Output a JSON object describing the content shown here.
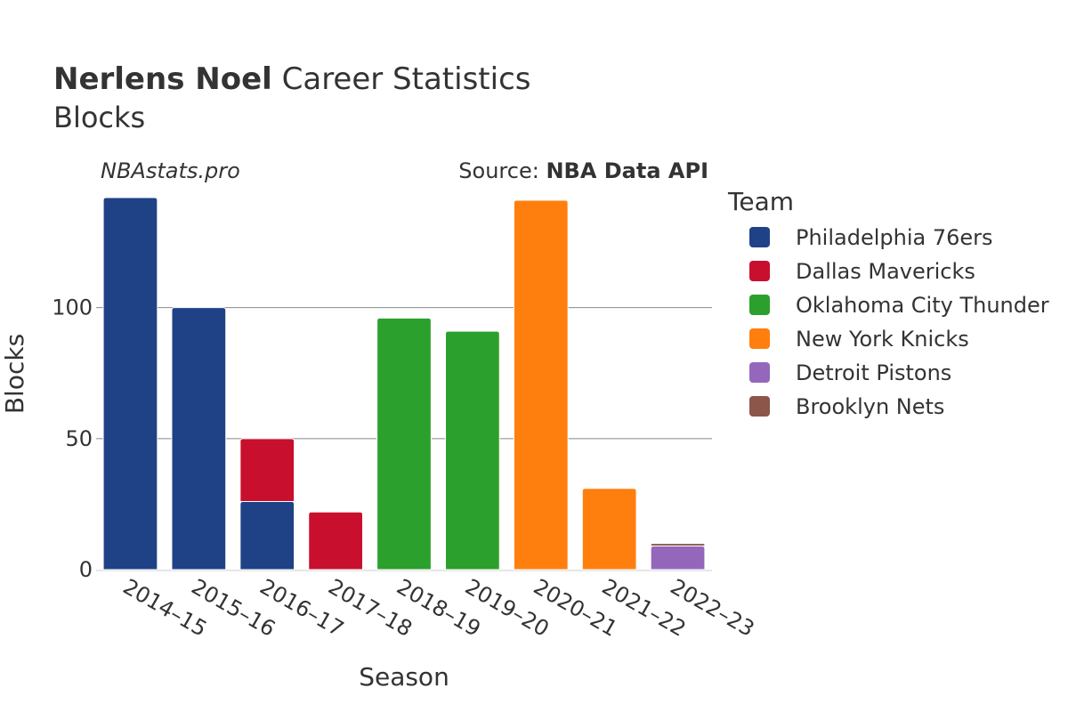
{
  "header": {
    "title_bold": "Nerlens Noel",
    "title_rest": " Career Statistics",
    "subtitle": "Blocks",
    "watermark": "NBAstats.pro",
    "source_prefix": "Source: ",
    "source_name": "NBA Data API"
  },
  "legend": {
    "title": "Team"
  },
  "chart_data": {
    "type": "bar",
    "stacked": true,
    "xlabel": "Season",
    "ylabel": "Blocks",
    "ylim": [
      0,
      142
    ],
    "yticks": [
      0,
      50,
      100
    ],
    "grid": true,
    "legend_position": "right",
    "categories": [
      "2014–15",
      "2015–16",
      "2016–17",
      "2017–18",
      "2018–19",
      "2019–20",
      "2020–21",
      "2021–22",
      "2022–23"
    ],
    "series": [
      {
        "name": "Philadelphia 76ers",
        "color": "#1f4287",
        "values": [
          142,
          100,
          26,
          0,
          0,
          0,
          0,
          0,
          0
        ]
      },
      {
        "name": "Dallas Mavericks",
        "color": "#c8102e",
        "values": [
          0,
          0,
          24,
          22,
          0,
          0,
          0,
          0,
          0
        ]
      },
      {
        "name": "Oklahoma City Thunder",
        "color": "#2ca02c",
        "values": [
          0,
          0,
          0,
          0,
          96,
          91,
          0,
          0,
          0
        ]
      },
      {
        "name": "New York Knicks",
        "color": "#ff7f0e",
        "values": [
          0,
          0,
          0,
          0,
          0,
          0,
          141,
          31,
          0
        ]
      },
      {
        "name": "Detroit Pistons",
        "color": "#9467bd",
        "values": [
          0,
          0,
          0,
          0,
          0,
          0,
          0,
          0,
          9
        ]
      },
      {
        "name": "Brooklyn Nets",
        "color": "#8c564b",
        "values": [
          0,
          0,
          0,
          0,
          0,
          0,
          0,
          0,
          1
        ]
      }
    ]
  }
}
